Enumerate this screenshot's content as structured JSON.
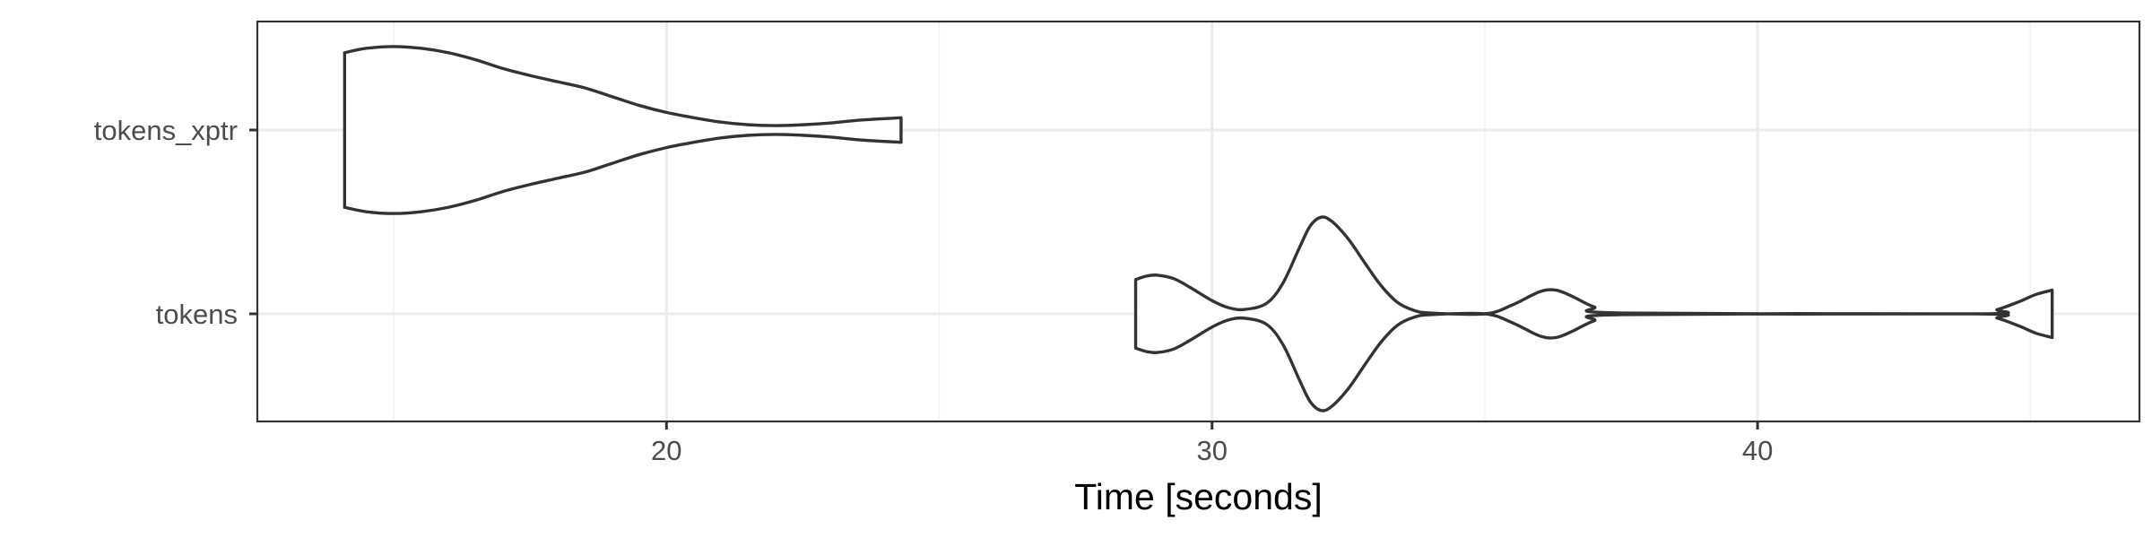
{
  "chart_data": {
    "type": "violin",
    "orientation": "horizontal",
    "xlabel": "Time [seconds]",
    "ylabel": "",
    "title": "",
    "xlim": [
      12.5,
      47
    ],
    "x_ticks": [
      20,
      30,
      40
    ],
    "grid": true,
    "legend": "none",
    "colors": {
      "outline": "#333333",
      "fill": "#ffffff",
      "grid_major": "#ebebeb",
      "grid_minor": "#f2f2f2",
      "panel_border": "#333333",
      "tick_label": "#4d4d4d",
      "axis_title": "#000000"
    },
    "categories": [
      "tokens_xptr",
      "tokens"
    ],
    "series": [
      {
        "category": "tokens_xptr",
        "min": 14.1,
        "max": 24.3,
        "density_profile": [
          [
            14.1,
            0.88
          ],
          [
            14.5,
            0.93
          ],
          [
            15.0,
            0.95
          ],
          [
            15.5,
            0.93
          ],
          [
            16.0,
            0.88
          ],
          [
            16.5,
            0.8
          ],
          [
            17.0,
            0.7
          ],
          [
            17.5,
            0.62
          ],
          [
            18.0,
            0.55
          ],
          [
            18.5,
            0.48
          ],
          [
            19.0,
            0.38
          ],
          [
            19.5,
            0.28
          ],
          [
            20.0,
            0.2
          ],
          [
            20.5,
            0.14
          ],
          [
            21.0,
            0.09
          ],
          [
            21.5,
            0.06
          ],
          [
            22.0,
            0.05
          ],
          [
            22.5,
            0.06
          ],
          [
            23.0,
            0.08
          ],
          [
            23.5,
            0.11
          ],
          [
            24.0,
            0.13
          ],
          [
            24.3,
            0.14
          ]
        ]
      },
      {
        "category": "tokens",
        "min": 28.6,
        "max": 45.4,
        "density_profile": [
          [
            28.6,
            0.39
          ],
          [
            28.8,
            0.43
          ],
          [
            29.0,
            0.44
          ],
          [
            29.3,
            0.4
          ],
          [
            29.6,
            0.3
          ],
          [
            30.0,
            0.15
          ],
          [
            30.3,
            0.07
          ],
          [
            30.6,
            0.05
          ],
          [
            31.0,
            0.12
          ],
          [
            31.3,
            0.35
          ],
          [
            31.6,
            0.75
          ],
          [
            31.8,
            1.0
          ],
          [
            32.0,
            1.1
          ],
          [
            32.2,
            1.05
          ],
          [
            32.5,
            0.85
          ],
          [
            32.8,
            0.58
          ],
          [
            33.1,
            0.32
          ],
          [
            33.4,
            0.13
          ],
          [
            33.7,
            0.04
          ],
          [
            34.0,
            0.01
          ],
          [
            35.0,
            0.0
          ],
          [
            35.5,
            0.1
          ],
          [
            36.0,
            0.25
          ],
          [
            36.3,
            0.27
          ],
          [
            36.6,
            0.2
          ],
          [
            37.0,
            0.08
          ],
          [
            37.5,
            0.01
          ],
          [
            44.0,
            0.0
          ],
          [
            44.4,
            0.05
          ],
          [
            44.8,
            0.14
          ],
          [
            45.1,
            0.22
          ],
          [
            45.4,
            0.27
          ]
        ]
      }
    ]
  }
}
